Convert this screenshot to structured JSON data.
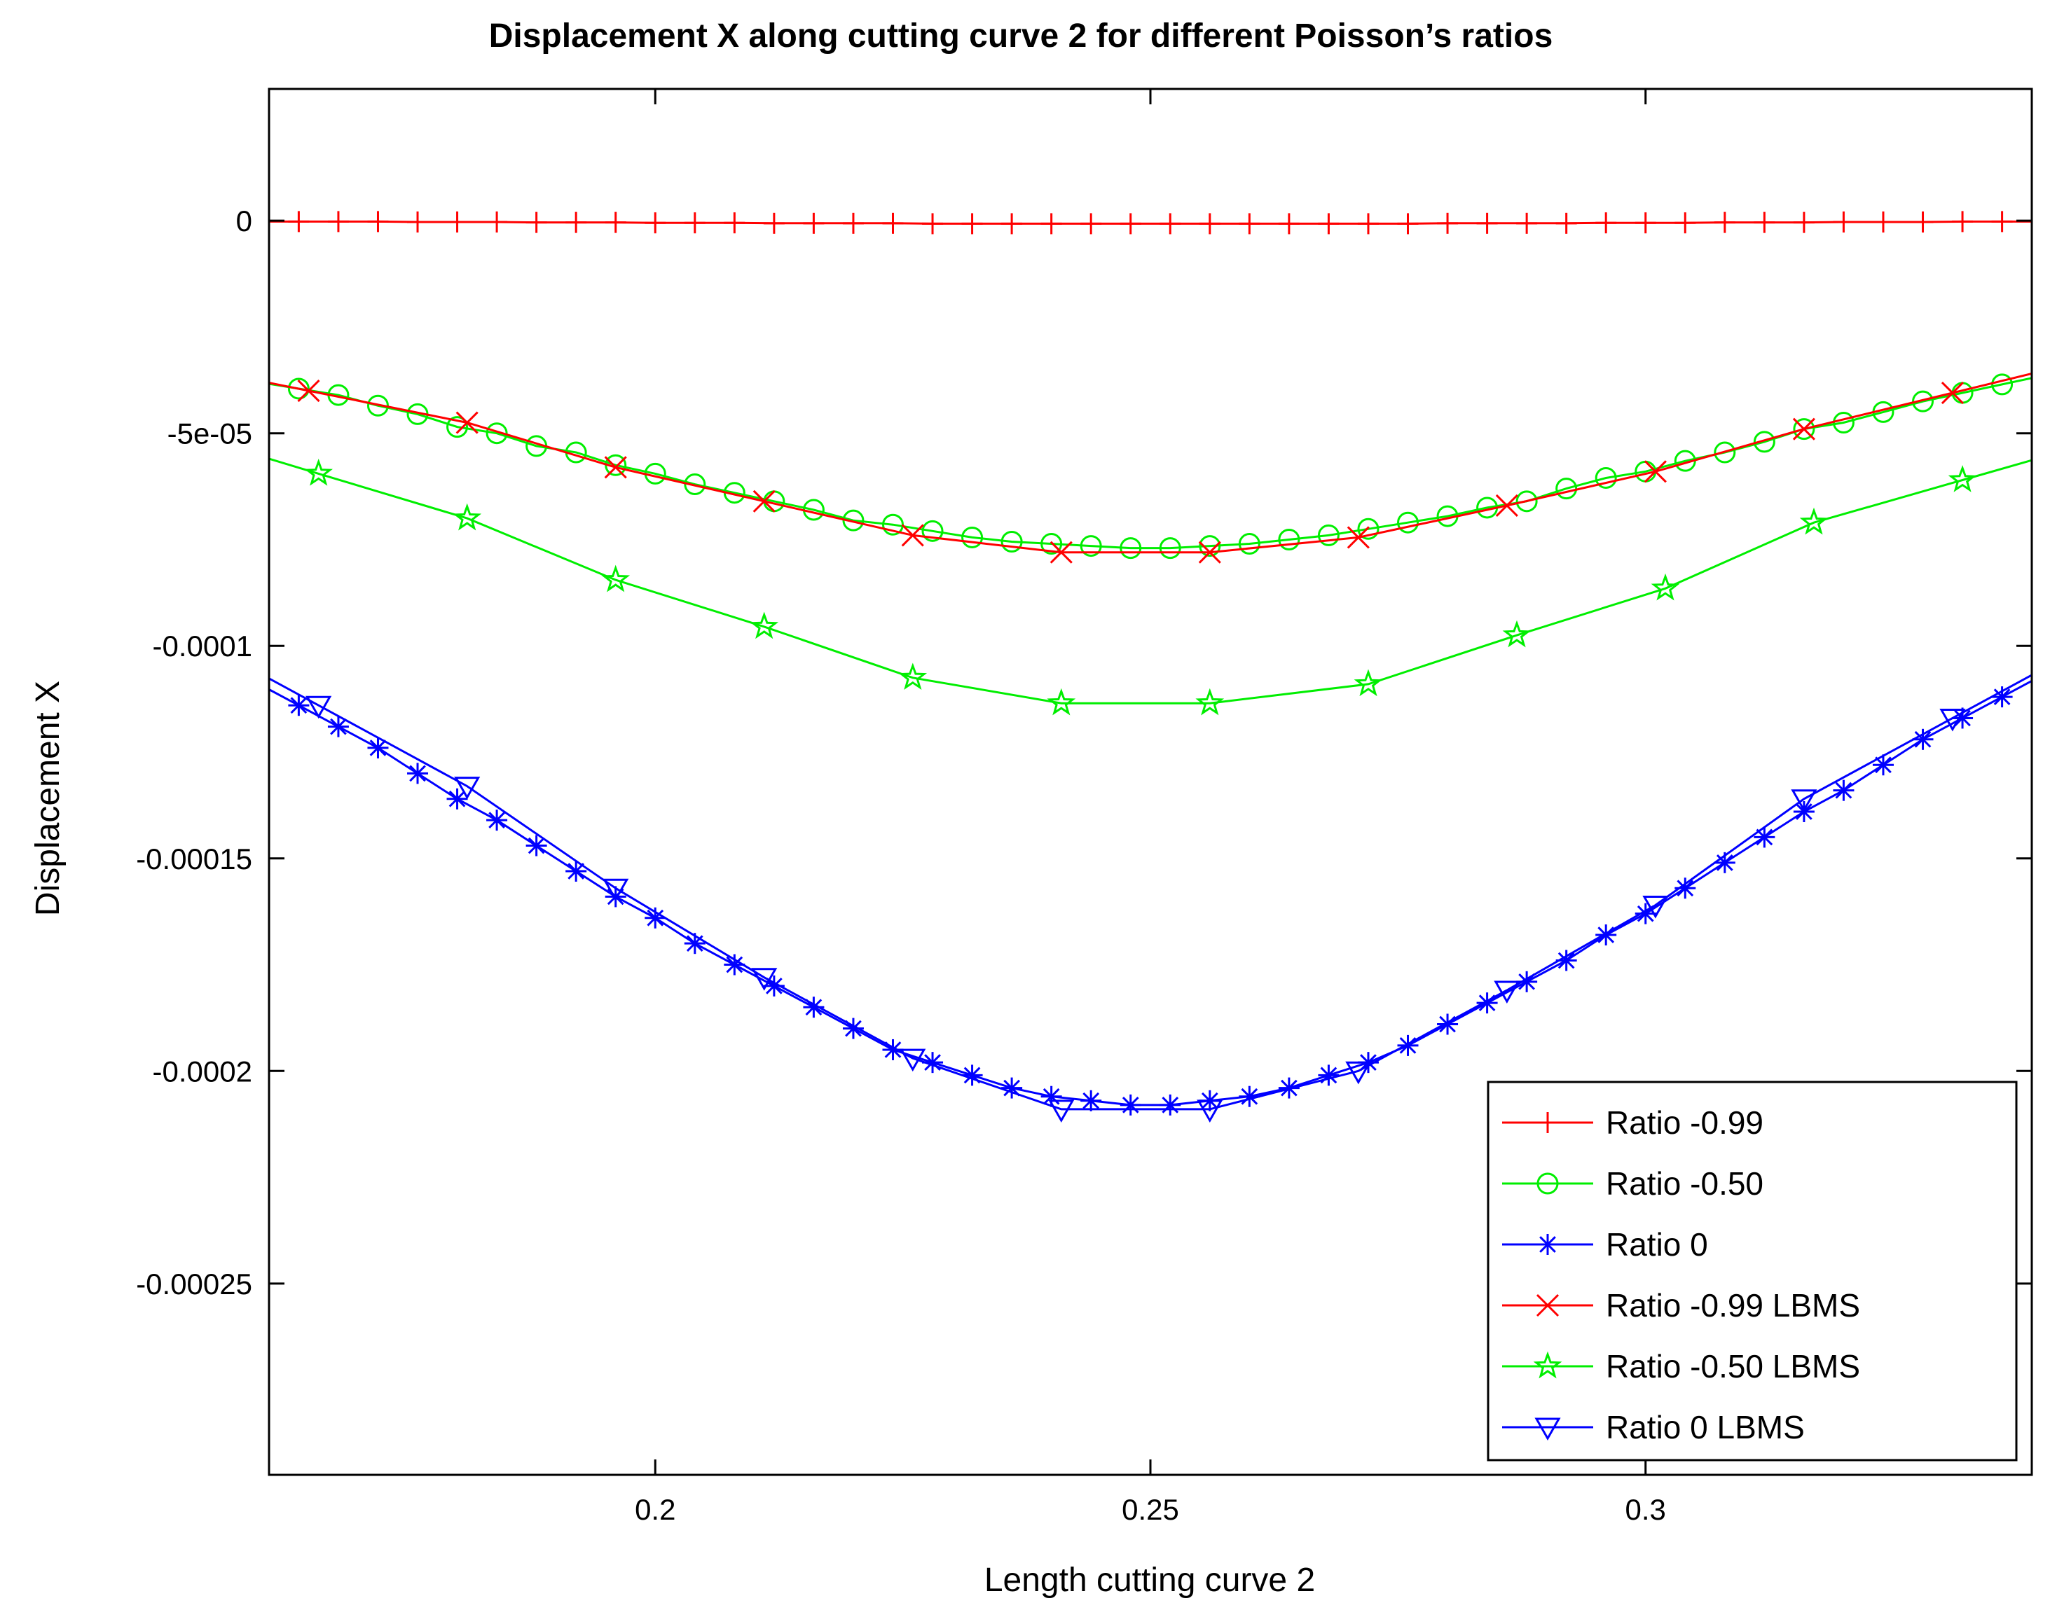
{
  "chart_data": {
    "type": "line",
    "title": "Displacement X along cutting curve 2 for different Poisson’s ratios",
    "xlabel": "Length cutting curve 2",
    "ylabel": "Displacement X",
    "xlim": [
      0.161,
      0.339
    ],
    "ylim": [
      -0.000295,
      3.1e-05
    ],
    "x_ticks": [
      0.2,
      0.25,
      0.3
    ],
    "x_tick_labels": [
      "0.2",
      "0.25",
      "0.3"
    ],
    "y_ticks": [
      0,
      -5e-05,
      -0.0001,
      -0.00015,
      -0.0002,
      -0.00025
    ],
    "y_tick_labels": [
      "0",
      "-5e-05",
      "-0.0001",
      "-0.00015",
      "-0.0002",
      "-0.00025"
    ],
    "grid": false,
    "legend_position": "bottom-right",
    "series": [
      {
        "name": "Ratio -0.99",
        "color": "#ff0000",
        "marker": "plus",
        "x": [
          0.164,
          0.168,
          0.172,
          0.176,
          0.18,
          0.184,
          0.188,
          0.192,
          0.196,
          0.2,
          0.204,
          0.208,
          0.212,
          0.216,
          0.22,
          0.224,
          0.228,
          0.232,
          0.236,
          0.24,
          0.244,
          0.248,
          0.252,
          0.256,
          0.26,
          0.264,
          0.268,
          0.272,
          0.276,
          0.28,
          0.284,
          0.288,
          0.292,
          0.296,
          0.3,
          0.304,
          0.308,
          0.312,
          0.316,
          0.32,
          0.324,
          0.328,
          0.332,
          0.336
        ],
        "y": [
          -2e-07,
          -2e-07,
          -2e-07,
          -3e-07,
          -3e-07,
          -3e-07,
          -4e-07,
          -4e-07,
          -4e-07,
          -5e-07,
          -5e-07,
          -5e-07,
          -6e-07,
          -6e-07,
          -6e-07,
          -6e-07,
          -7e-07,
          -7e-07,
          -7e-07,
          -7e-07,
          -7e-07,
          -7e-07,
          -7e-07,
          -7e-07,
          -7e-07,
          -7e-07,
          -7e-07,
          -7e-07,
          -7e-07,
          -6e-07,
          -6e-07,
          -6e-07,
          -6e-07,
          -5e-07,
          -5e-07,
          -5e-07,
          -4e-07,
          -4e-07,
          -4e-07,
          -3e-07,
          -3e-07,
          -3e-07,
          -2e-07,
          -2e-07
        ]
      },
      {
        "name": "Ratio -0.50",
        "color": "#00ee00",
        "marker": "circle",
        "x": [
          0.164,
          0.168,
          0.172,
          0.176,
          0.18,
          0.184,
          0.188,
          0.192,
          0.196,
          0.2,
          0.204,
          0.208,
          0.212,
          0.216,
          0.22,
          0.224,
          0.228,
          0.232,
          0.236,
          0.24,
          0.244,
          0.248,
          0.252,
          0.256,
          0.26,
          0.264,
          0.268,
          0.272,
          0.276,
          0.28,
          0.284,
          0.288,
          0.292,
          0.296,
          0.3,
          0.304,
          0.308,
          0.312,
          0.316,
          0.32,
          0.324,
          0.328,
          0.332,
          0.336
        ],
        "y": [
          -3.95e-05,
          -4.1e-05,
          -4.35e-05,
          -4.55e-05,
          -4.85e-05,
          -5e-05,
          -5.3e-05,
          -5.45e-05,
          -5.75e-05,
          -5.95e-05,
          -6.2e-05,
          -6.4e-05,
          -6.6e-05,
          -6.8e-05,
          -7.05e-05,
          -7.15e-05,
          -7.3e-05,
          -7.45e-05,
          -7.55e-05,
          -7.6e-05,
          -7.65e-05,
          -7.7e-05,
          -7.7e-05,
          -7.65e-05,
          -7.6e-05,
          -7.5e-05,
          -7.4e-05,
          -7.25e-05,
          -7.1e-05,
          -6.95e-05,
          -6.75e-05,
          -6.6e-05,
          -6.3e-05,
          -6.05e-05,
          -5.9e-05,
          -5.65e-05,
          -5.45e-05,
          -5.2e-05,
          -4.9e-05,
          -4.75e-05,
          -4.5e-05,
          -4.25e-05,
          -4.05e-05,
          -3.85e-05
        ]
      },
      {
        "name": "Ratio 0",
        "color": "#0000ff",
        "marker": "asterisk",
        "x": [
          0.164,
          0.168,
          0.172,
          0.176,
          0.18,
          0.184,
          0.188,
          0.192,
          0.196,
          0.2,
          0.204,
          0.208,
          0.212,
          0.216,
          0.22,
          0.224,
          0.228,
          0.232,
          0.236,
          0.24,
          0.244,
          0.248,
          0.252,
          0.256,
          0.26,
          0.264,
          0.268,
          0.272,
          0.276,
          0.28,
          0.284,
          0.288,
          0.292,
          0.296,
          0.3,
          0.304,
          0.308,
          0.312,
          0.316,
          0.32,
          0.324,
          0.328,
          0.332,
          0.336
        ],
        "y": [
          -0.000114,
          -0.000119,
          -0.000124,
          -0.00013,
          -0.000136,
          -0.000141,
          -0.000147,
          -0.000153,
          -0.000159,
          -0.000164,
          -0.00017,
          -0.000175,
          -0.00018,
          -0.000185,
          -0.00019,
          -0.000195,
          -0.000198,
          -0.000201,
          -0.000204,
          -0.000206,
          -0.000207,
          -0.000208,
          -0.000208,
          -0.000207,
          -0.000206,
          -0.000204,
          -0.000201,
          -0.000198,
          -0.000194,
          -0.000189,
          -0.000184,
          -0.000179,
          -0.000174,
          -0.000168,
          -0.000163,
          -0.000157,
          -0.000151,
          -0.000145,
          -0.000139,
          -0.000134,
          -0.000128,
          -0.000122,
          -0.000117,
          -0.000112
        ]
      },
      {
        "name": "Ratio -0.99 LBMS",
        "color": "#ff0000",
        "marker": "x",
        "x": [
          0.165,
          0.181,
          0.196,
          0.211,
          0.226,
          0.241,
          0.256,
          0.271,
          0.286,
          0.301,
          0.316,
          0.331
        ],
        "y": [
          -4e-05,
          -4.75e-05,
          -5.8e-05,
          -6.6e-05,
          -7.4e-05,
          -7.8e-05,
          -7.8e-05,
          -7.45e-05,
          -6.7e-05,
          -5.9e-05,
          -4.9e-05,
          -4.05e-05
        ]
      },
      {
        "name": "Ratio -0.50 LBMS",
        "color": "#00ee00",
        "marker": "star",
        "x": [
          0.166,
          0.181,
          0.196,
          0.211,
          0.226,
          0.241,
          0.256,
          0.272,
          0.287,
          0.302,
          0.317,
          0.332
        ],
        "y": [
          -5.95e-05,
          -7e-05,
          -8.45e-05,
          -9.55e-05,
          -0.0001075,
          -0.0001135,
          -0.0001135,
          -0.000109,
          -9.75e-05,
          -8.65e-05,
          -7.1e-05,
          -6.1e-05
        ]
      },
      {
        "name": "Ratio 0 LBMS",
        "color": "#0000ff",
        "marker": "triangle-down",
        "x": [
          0.166,
          0.181,
          0.196,
          0.211,
          0.226,
          0.241,
          0.256,
          0.271,
          0.286,
          0.301,
          0.316,
          0.331
        ],
        "y": [
          -0.000114,
          -0.000133,
          -0.000157,
          -0.000178,
          -0.000197,
          -0.000209,
          -0.000209,
          -0.0002,
          -0.000181,
          -0.000161,
          -0.000136,
          -0.000117
        ]
      }
    ]
  }
}
